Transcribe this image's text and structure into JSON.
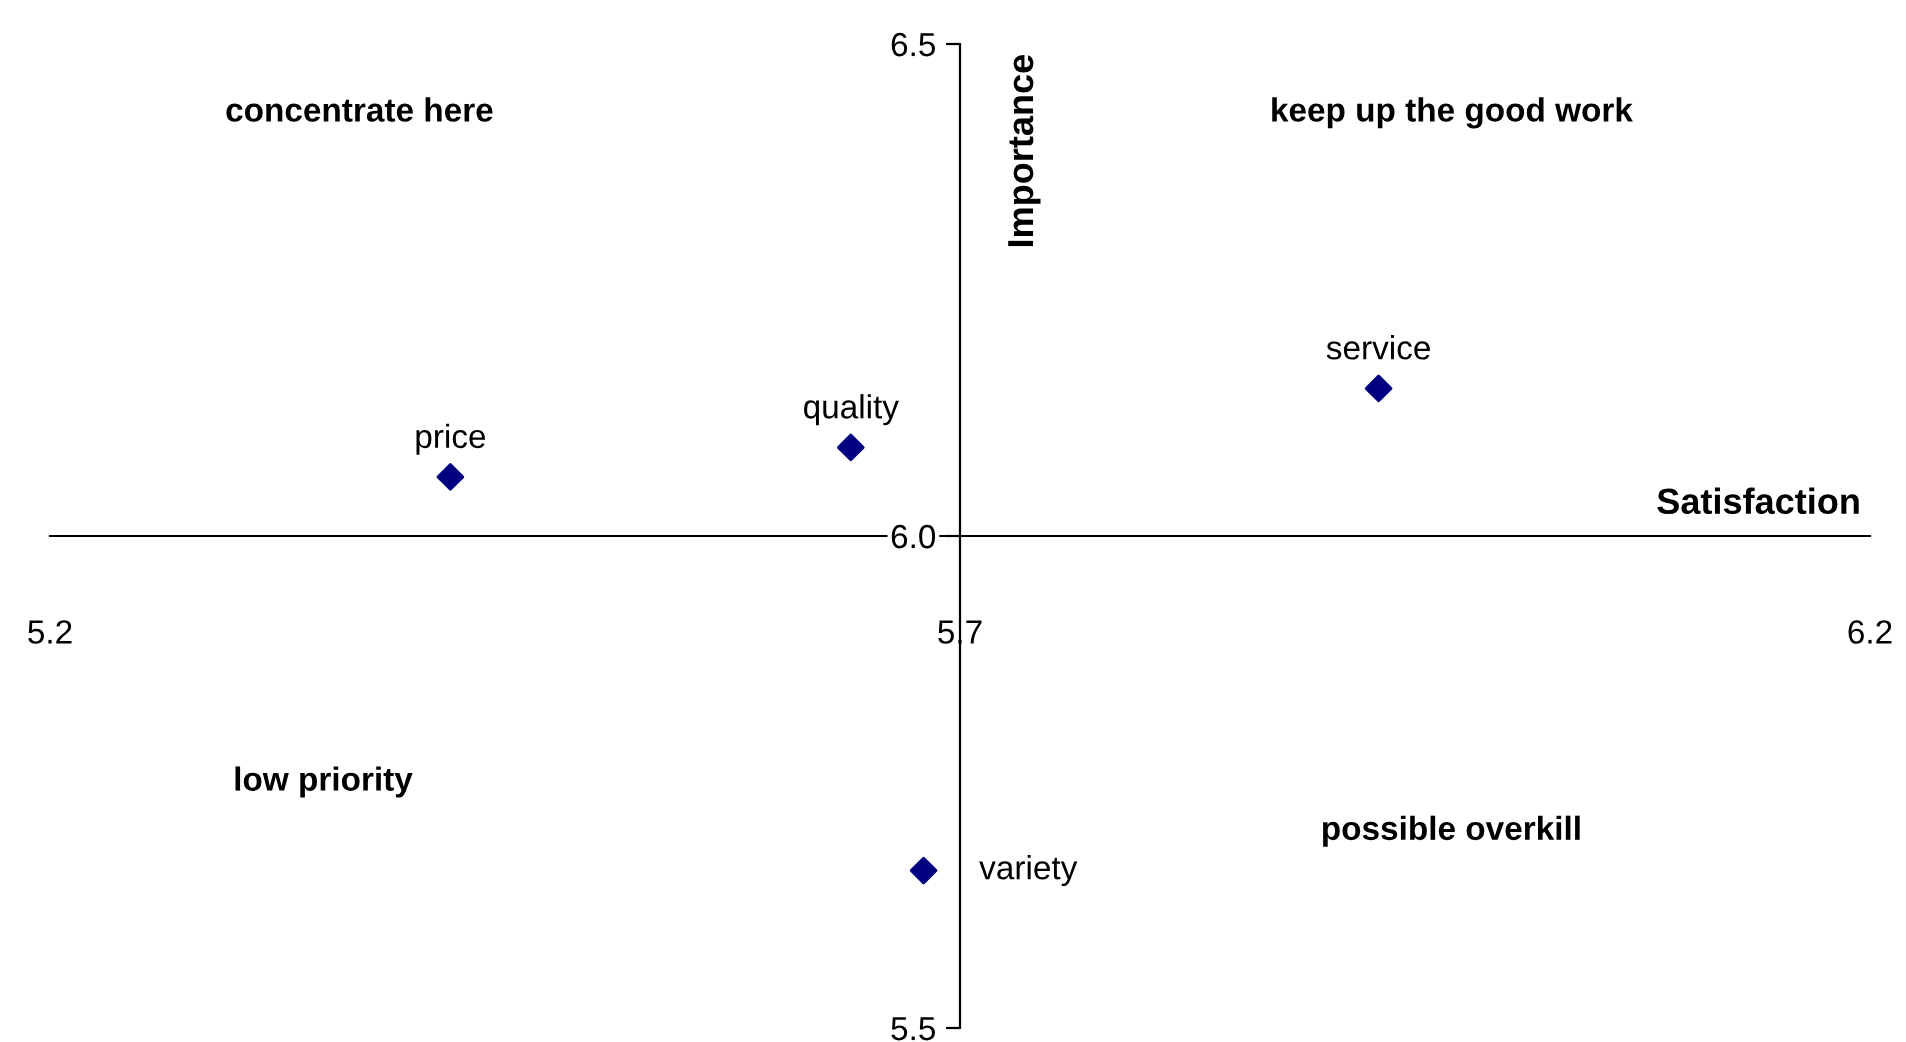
{
  "chart_data": {
    "type": "scatter",
    "xlabel": "Satisfaction",
    "ylabel": "Importance",
    "xlim": [
      5.2,
      6.2
    ],
    "xticks": [
      {
        "value": 5.2,
        "label": "5.2"
      },
      {
        "value": 5.7,
        "label": "5.7"
      },
      {
        "value": 6.2,
        "label": "6.2"
      }
    ],
    "ylim": [
      5.5,
      6.5
    ],
    "yticks": [
      {
        "value": 5.5,
        "label": "5.5"
      },
      {
        "value": 6.0,
        "label": "6.0"
      },
      {
        "value": 6.5,
        "label": "6.5"
      }
    ],
    "marker": "diamond",
    "grid": false,
    "legend": false,
    "series": [
      {
        "name": "price",
        "color": "#000080",
        "x": [
          5.42
        ],
        "values": [
          6.06
        ]
      },
      {
        "name": "quality",
        "color": "#000080",
        "x": [
          5.64
        ],
        "values": [
          6.09
        ]
      },
      {
        "name": "service",
        "color": "#000080",
        "x": [
          5.93
        ],
        "values": [
          6.15
        ]
      },
      {
        "name": "variety",
        "color": "#000080",
        "x": [
          5.68
        ],
        "values": [
          5.66
        ]
      }
    ],
    "annotations": [
      "concentrate here",
      "keep up the good work",
      "low priority",
      "possible overkill"
    ]
  }
}
